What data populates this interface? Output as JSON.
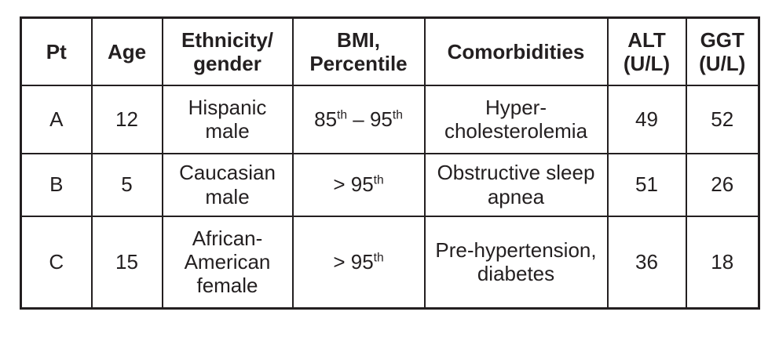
{
  "meta": {
    "background_color": "#ffffff",
    "text_color": "#231f20",
    "border_color": "#231f20"
  },
  "table": {
    "headers": {
      "pt": "Pt",
      "age": "Age",
      "ethnicity": "Ethnicity/\ngender",
      "bmi": "BMI,\nPercentile",
      "comorbidities": "Comorbidities",
      "alt": "ALT\n(U/L)",
      "ggt": "GGT\n(U/L)"
    },
    "rows": [
      {
        "pt": "A",
        "age": "12",
        "ethnicity": "Hispanic\nmale",
        "bmi": "85^th^ – 95^th^",
        "comorbidities": "Hyper-\ncholesterolemia",
        "alt": "49",
        "ggt": "52"
      },
      {
        "pt": "B",
        "age": "5",
        "ethnicity": "Caucasian\nmale",
        "bmi": "> 95^th^",
        "comorbidities": "Obstructive sleep\napnea",
        "alt": "51",
        "ggt": "26"
      },
      {
        "pt": "C",
        "age": "15",
        "ethnicity": "African-\nAmerican\nfemale",
        "bmi": "> 95^th^",
        "comorbidities": "Pre-hypertension,\ndiabetes",
        "alt": "36",
        "ggt": "18"
      }
    ]
  }
}
